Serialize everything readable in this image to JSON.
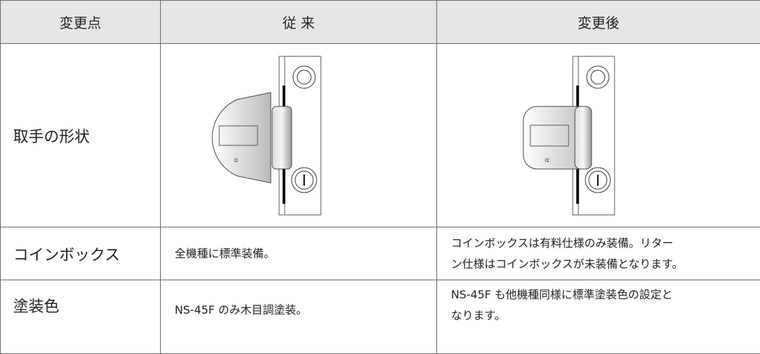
{
  "table": {
    "header": [
      "変更点",
      "従 来",
      "変更後"
    ],
    "rows": [
      [
        "取手の形状",
        "",
        ""
      ],
      [
        "コインボックス",
        [
          "全機種に標準装備。"
        ],
        [
          "コインボックスは有料仕様のみ装備。リター",
          "ン仕様はコインボックスが未装備となります。"
        ]
      ],
      [
        "塗装色",
        [
          "NS-45F のみ木目調塗装。"
        ],
        [
          "NS-45F も他機種同様に標準塗装色の設定と",
          "なります。"
        ]
      ]
    ]
  }
}
